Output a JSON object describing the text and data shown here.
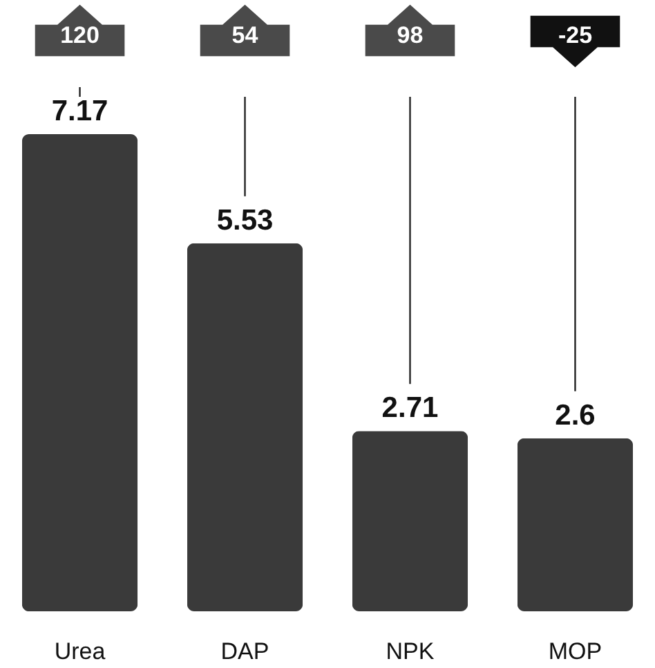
{
  "chart_data": {
    "type": "bar",
    "categories": [
      "Urea",
      "DAP",
      "NPK",
      "MOP"
    ],
    "values": [
      7.17,
      5.53,
      2.71,
      2.6
    ],
    "color": "#3a3a3a",
    "data_labels": true,
    "annotations": [
      "120",
      "54",
      "98",
      "-25"
    ]
  }
}
